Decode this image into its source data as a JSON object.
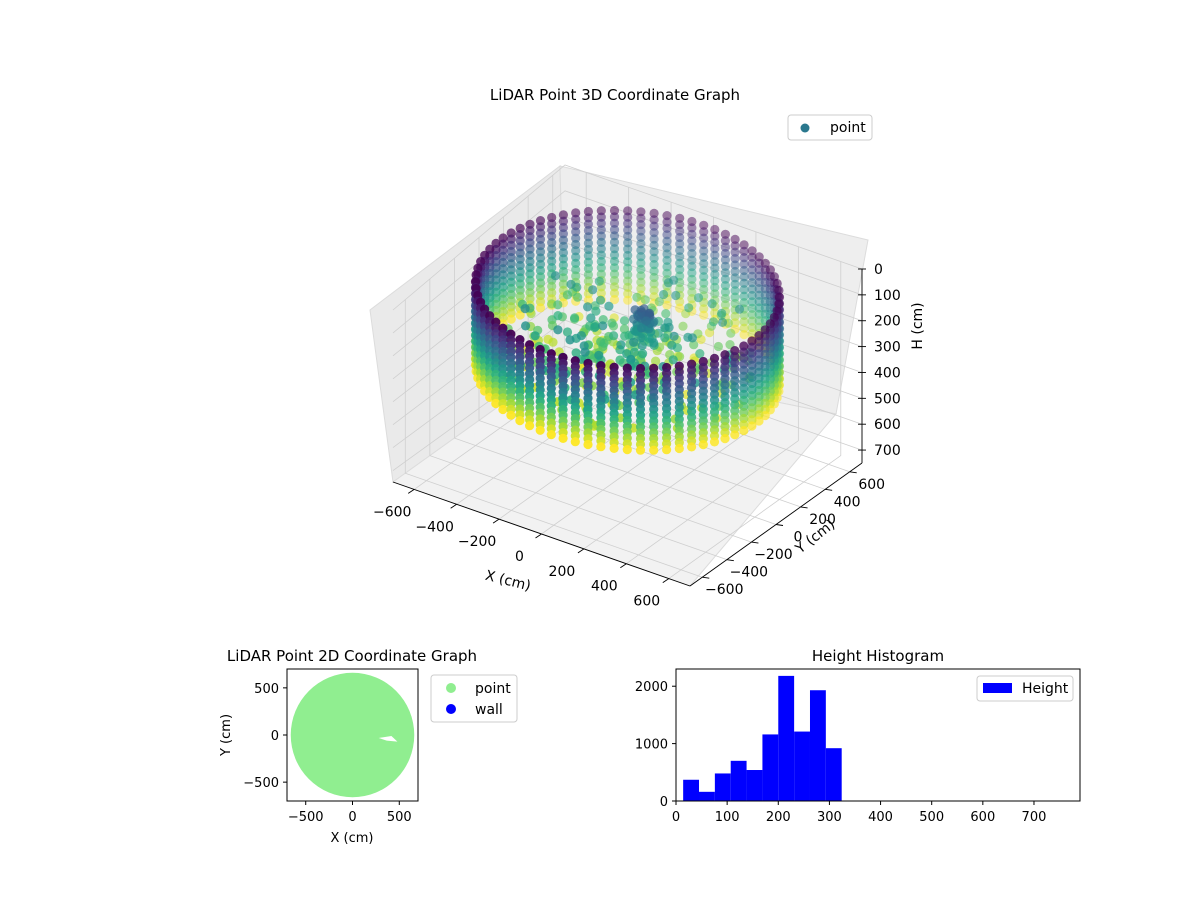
{
  "chart_data": [
    {
      "type": "scatter",
      "title": "LiDAR Point 3D Coordinate Graph",
      "xlabel": "X (cm)",
      "ylabel": "Y (cm)",
      "zlabel": "H (cm)",
      "xlim": [
        -700,
        700
      ],
      "ylim": [
        -700,
        700
      ],
      "zlim": [
        750,
        0
      ],
      "x_ticks": [
        -600,
        -400,
        -200,
        0,
        200,
        400,
        600
      ],
      "y_ticks": [
        -600,
        -400,
        -200,
        0,
        200,
        400,
        600
      ],
      "z_ticks": [
        0,
        100,
        200,
        300,
        400,
        500,
        600,
        700
      ],
      "legend": [
        "point"
      ],
      "legend_position": "top-right",
      "colormap": "viridis",
      "grid": true,
      "wall_radius": 620,
      "wall_height_range": [
        0,
        350
      ],
      "center_peak": {
        "x": 40,
        "y": 60,
        "height_range": [
          100,
          200
        ]
      }
    },
    {
      "type": "scatter",
      "title": "LiDAR Point 2D Coordinate Graph",
      "xlabel": "X (cm)",
      "ylabel": "Y (cm)",
      "xlim": [
        -700,
        700
      ],
      "ylim": [
        -700,
        700
      ],
      "x_ticks": [
        -500,
        0,
        500
      ],
      "y_ticks": [
        -500,
        0,
        500
      ],
      "series": [
        {
          "name": "point",
          "color": "#90ee90",
          "shape": "disc",
          "radius": 660,
          "gap": {
            "x": [
              280,
              480
            ],
            "y": [
              -70,
              -10
            ]
          }
        },
        {
          "name": "wall",
          "color": "#0000ff"
        }
      ],
      "legend_position": "outside-right"
    },
    {
      "type": "bar",
      "title": "Height Histogram",
      "xlim": [
        0,
        790
      ],
      "ylim": [
        0,
        2300
      ],
      "x_ticks": [
        0,
        100,
        200,
        300,
        400,
        500,
        600,
        700
      ],
      "y_ticks": [
        0,
        1000,
        2000
      ],
      "bin_edges": [
        14,
        45,
        76,
        107,
        138,
        169,
        200,
        231,
        262,
        293,
        324
      ],
      "series": [
        {
          "name": "Height",
          "color": "#0000ff",
          "values": [
            370,
            160,
            480,
            700,
            540,
            1160,
            2180,
            1210,
            1930,
            920
          ]
        }
      ],
      "legend_position": "top-right"
    }
  ]
}
